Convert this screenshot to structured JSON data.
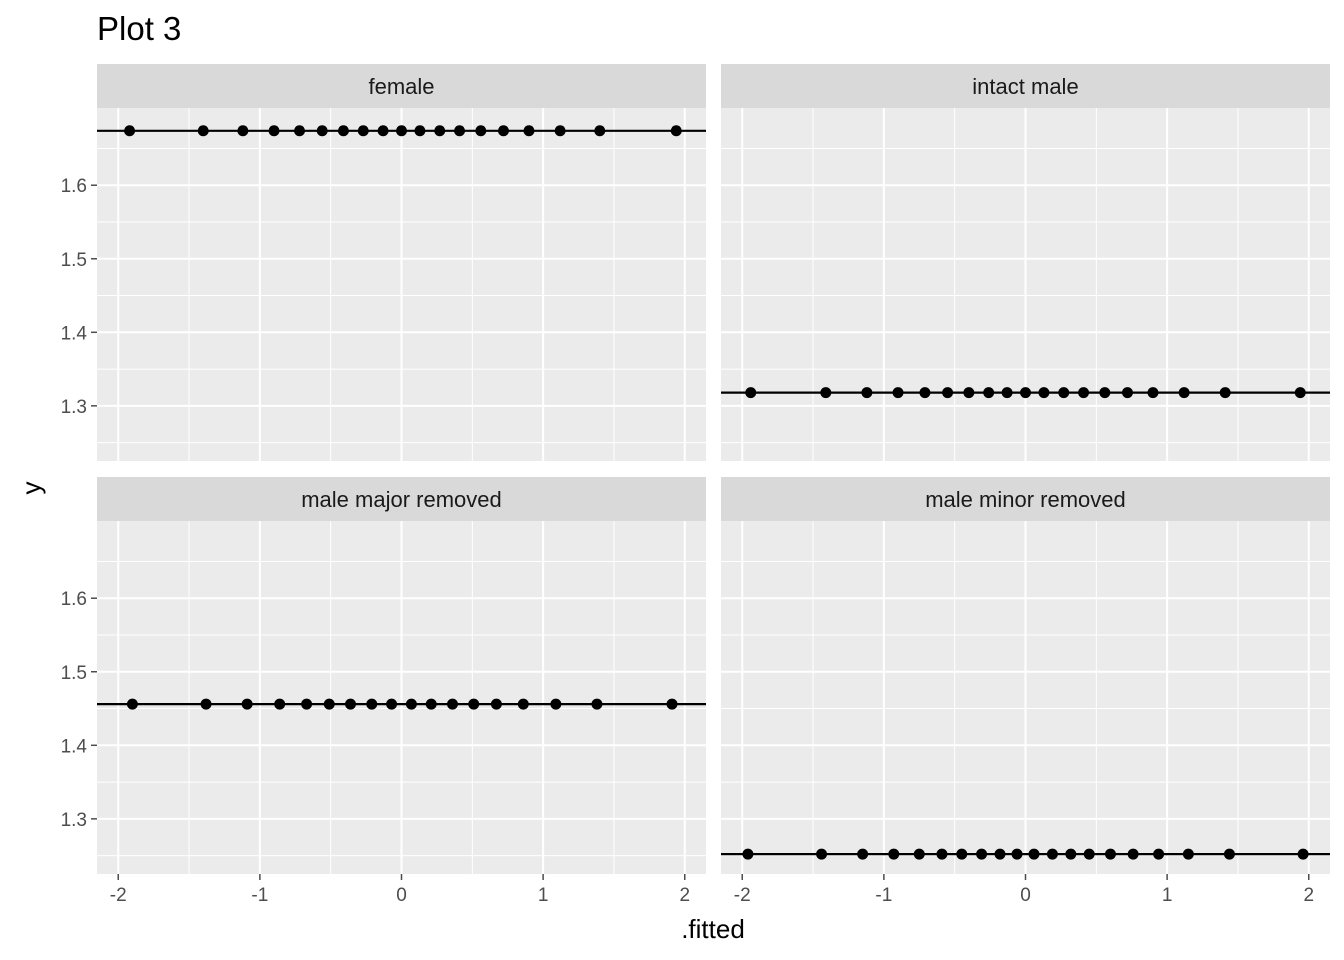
{
  "chart_data": {
    "type": "scatter",
    "title": "Plot 3",
    "xlabel": ".fitted",
    "ylabel": "y",
    "xlim": [
      -2.15,
      2.15
    ],
    "ylim": [
      1.225,
      1.705
    ],
    "x_ticks": [
      -2,
      -1,
      0,
      1,
      2
    ],
    "x_tick_labels": [
      "-2",
      "-1",
      "0",
      "1",
      "2"
    ],
    "y_ticks": [
      1.3,
      1.4,
      1.5,
      1.6
    ],
    "y_tick_labels": [
      "1.3",
      "1.4",
      "1.5",
      "1.6"
    ],
    "grid": true,
    "panels": [
      {
        "label": "female",
        "line_y": 1.674,
        "points": [
          {
            "x": -1.92,
            "y": 1.674
          },
          {
            "x": -1.4,
            "y": 1.674
          },
          {
            "x": -1.12,
            "y": 1.674
          },
          {
            "x": -0.9,
            "y": 1.674
          },
          {
            "x": -0.72,
            "y": 1.674
          },
          {
            "x": -0.56,
            "y": 1.674
          },
          {
            "x": -0.41,
            "y": 1.674
          },
          {
            "x": -0.27,
            "y": 1.674
          },
          {
            "x": -0.13,
            "y": 1.674
          },
          {
            "x": 0.0,
            "y": 1.674
          },
          {
            "x": 0.13,
            "y": 1.674
          },
          {
            "x": 0.27,
            "y": 1.674
          },
          {
            "x": 0.41,
            "y": 1.674
          },
          {
            "x": 0.56,
            "y": 1.674
          },
          {
            "x": 0.72,
            "y": 1.674
          },
          {
            "x": 0.9,
            "y": 1.674
          },
          {
            "x": 1.12,
            "y": 1.674
          },
          {
            "x": 1.4,
            "y": 1.674
          },
          {
            "x": 1.94,
            "y": 1.674
          }
        ]
      },
      {
        "label": "intact male",
        "line_y": 1.318,
        "points": [
          {
            "x": -1.94,
            "y": 1.318
          },
          {
            "x": -1.41,
            "y": 1.318
          },
          {
            "x": -1.12,
            "y": 1.318
          },
          {
            "x": -0.9,
            "y": 1.318
          },
          {
            "x": -0.71,
            "y": 1.318
          },
          {
            "x": -0.55,
            "y": 1.318
          },
          {
            "x": -0.4,
            "y": 1.318
          },
          {
            "x": -0.26,
            "y": 1.318
          },
          {
            "x": -0.13,
            "y": 1.318
          },
          {
            "x": 0.0,
            "y": 1.318
          },
          {
            "x": 0.13,
            "y": 1.318
          },
          {
            "x": 0.27,
            "y": 1.318
          },
          {
            "x": 0.41,
            "y": 1.318
          },
          {
            "x": 0.56,
            "y": 1.318
          },
          {
            "x": 0.72,
            "y": 1.318
          },
          {
            "x": 0.9,
            "y": 1.318
          },
          {
            "x": 1.12,
            "y": 1.318
          },
          {
            "x": 1.41,
            "y": 1.318
          },
          {
            "x": 1.94,
            "y": 1.318
          }
        ]
      },
      {
        "label": "male major removed",
        "line_y": 1.456,
        "points": [
          {
            "x": -1.9,
            "y": 1.456
          },
          {
            "x": -1.38,
            "y": 1.456
          },
          {
            "x": -1.09,
            "y": 1.456
          },
          {
            "x": -0.86,
            "y": 1.456
          },
          {
            "x": -0.67,
            "y": 1.456
          },
          {
            "x": -0.51,
            "y": 1.456
          },
          {
            "x": -0.36,
            "y": 1.456
          },
          {
            "x": -0.21,
            "y": 1.456
          },
          {
            "x": -0.07,
            "y": 1.456
          },
          {
            "x": 0.07,
            "y": 1.456
          },
          {
            "x": 0.21,
            "y": 1.456
          },
          {
            "x": 0.36,
            "y": 1.456
          },
          {
            "x": 0.51,
            "y": 1.456
          },
          {
            "x": 0.67,
            "y": 1.456
          },
          {
            "x": 0.86,
            "y": 1.456
          },
          {
            "x": 1.09,
            "y": 1.456
          },
          {
            "x": 1.38,
            "y": 1.456
          },
          {
            "x": 1.91,
            "y": 1.456
          }
        ]
      },
      {
        "label": "male minor removed",
        "line_y": 1.252,
        "points": [
          {
            "x": -1.96,
            "y": 1.252
          },
          {
            "x": -1.44,
            "y": 1.252
          },
          {
            "x": -1.15,
            "y": 1.252
          },
          {
            "x": -0.93,
            "y": 1.252
          },
          {
            "x": -0.75,
            "y": 1.252
          },
          {
            "x": -0.59,
            "y": 1.252
          },
          {
            "x": -0.45,
            "y": 1.252
          },
          {
            "x": -0.31,
            "y": 1.252
          },
          {
            "x": -0.18,
            "y": 1.252
          },
          {
            "x": -0.06,
            "y": 1.252
          },
          {
            "x": 0.06,
            "y": 1.252
          },
          {
            "x": 0.19,
            "y": 1.252
          },
          {
            "x": 0.32,
            "y": 1.252
          },
          {
            "x": 0.45,
            "y": 1.252
          },
          {
            "x": 0.6,
            "y": 1.252
          },
          {
            "x": 0.76,
            "y": 1.252
          },
          {
            "x": 0.94,
            "y": 1.252
          },
          {
            "x": 1.15,
            "y": 1.252
          },
          {
            "x": 1.44,
            "y": 1.252
          },
          {
            "x": 1.96,
            "y": 1.252
          }
        ]
      }
    ]
  },
  "colors": {
    "panel_bg": "#ebebeb",
    "strip_bg": "#d9d9d9",
    "grid": "#ffffff",
    "points": "#000000",
    "line": "#000000",
    "tick": "#4d4d4d"
  }
}
